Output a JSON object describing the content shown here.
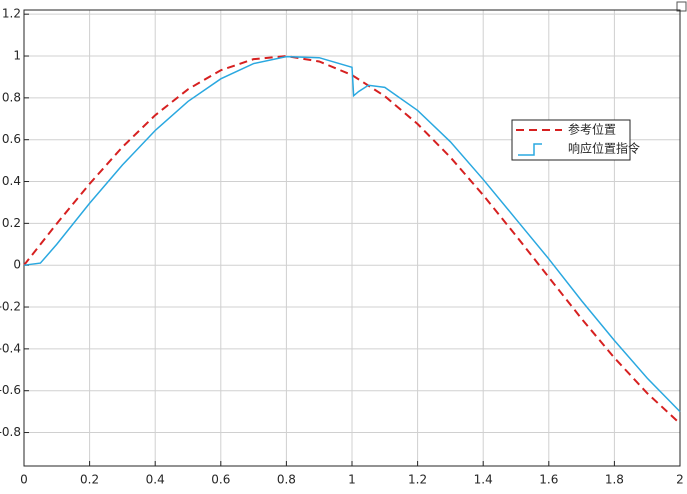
{
  "chart_data": {
    "type": "line",
    "xlim": [
      0,
      2
    ],
    "xticks": [
      0,
      0.2,
      0.4,
      0.6,
      0.8,
      1,
      1.2,
      1.4,
      1.6,
      1.8,
      2
    ],
    "ylim": [
      -0.96,
      1.22
    ],
    "yticks": [
      -0.8,
      -0.6,
      -0.4,
      -0.2,
      0,
      0.2,
      0.4,
      0.6,
      0.8,
      1,
      1.2
    ],
    "grid": true,
    "legend": "east",
    "series": [
      {
        "name": "参考位置",
        "color": "#d62020",
        "dash": true,
        "x": [
          0,
          0.1,
          0.2,
          0.3,
          0.4,
          0.5,
          0.6,
          0.7,
          0.8,
          0.9,
          1,
          1.1,
          1.2,
          1.3,
          1.4,
          1.5,
          1.6,
          1.7,
          1.8,
          1.9,
          2
        ],
        "values": [
          0,
          0.199,
          0.389,
          0.565,
          0.717,
          0.841,
          0.932,
          0.985,
          1.0,
          0.974,
          0.909,
          0.808,
          0.675,
          0.516,
          0.335,
          0.141,
          -0.058,
          -0.256,
          -0.443,
          -0.612,
          -0.757
        ]
      },
      {
        "name": "响应位置指令",
        "color": "#2aa8e0",
        "dash": false,
        "x": [
          0,
          0.05,
          0.1,
          0.2,
          0.3,
          0.4,
          0.5,
          0.6,
          0.7,
          0.8,
          0.9,
          1,
          1.005,
          1.02,
          1.05,
          1.1,
          1.2,
          1.3,
          1.4,
          1.5,
          1.6,
          1.7,
          1.8,
          1.9,
          2
        ],
        "values": [
          0,
          0.01,
          0.1,
          0.296,
          0.479,
          0.644,
          0.783,
          0.891,
          0.964,
          0.997,
          0.992,
          0.946,
          0.81,
          0.83,
          0.86,
          0.85,
          0.74,
          0.59,
          0.41,
          0.22,
          0.03,
          -0.17,
          -0.36,
          -0.54,
          -0.7
        ]
      }
    ]
  }
}
